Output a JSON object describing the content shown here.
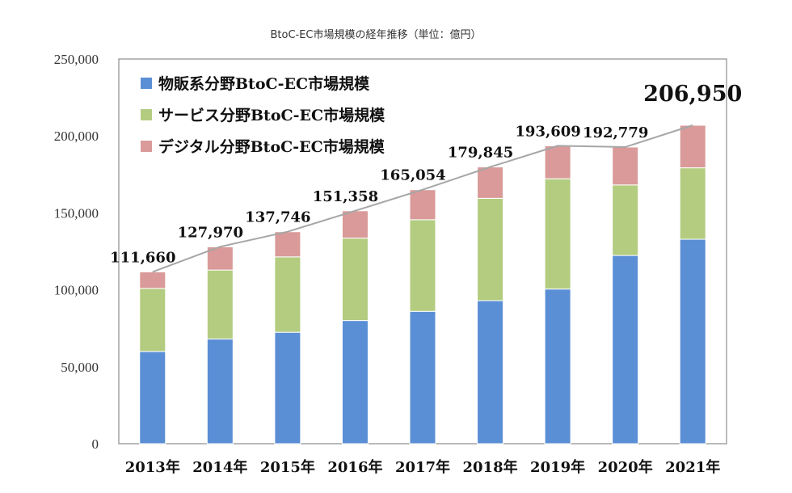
{
  "chart_data": {
    "type": "bar",
    "stacked": true,
    "title": "BtoC-EC市場規模の経年推移（単位：億円）",
    "categories": [
      "2013年",
      "2014年",
      "2015年",
      "2016年",
      "2017年",
      "2018年",
      "2019年",
      "2020年",
      "2021年"
    ],
    "series": [
      {
        "name": "物販系分野BtoC-EC市場規模",
        "color": "#5b8fd5",
        "values": [
          59931,
          68043,
          72398,
          80043,
          86008,
          92992,
          100515,
          122333,
          132865
        ]
      },
      {
        "name": "サービス分野BtoC-EC市場規模",
        "color": "#b3cc80",
        "values": [
          40990,
          44816,
          49014,
          53532,
          59568,
          66471,
          71672,
          45832,
          46424
        ]
      },
      {
        "name": "デジタル分野BtoC-EC市場規模",
        "color": "#d99a99",
        "values": [
          10739,
          15111,
          16334,
          17783,
          19478,
          20382,
          21422,
          24614,
          27661
        ]
      }
    ],
    "totals": [
      111660,
      127970,
      137746,
      151358,
      165054,
      179845,
      193609,
      192779,
      206950
    ],
    "total_labels": [
      "111,660",
      "127,970",
      "137,746",
      "151,358",
      "165,054",
      "179,845",
      "193,609",
      "192,779",
      "206,950"
    ],
    "total_line_color": "#a6a6a6",
    "ylim": [
      0,
      250000
    ],
    "yticks": [
      0,
      50000,
      100000,
      150000,
      200000,
      250000
    ],
    "ytick_labels": [
      "0",
      "50,000",
      "100,000",
      "150,000",
      "200,000",
      "250,000"
    ],
    "grid": false,
    "legend_position": "top-left"
  }
}
